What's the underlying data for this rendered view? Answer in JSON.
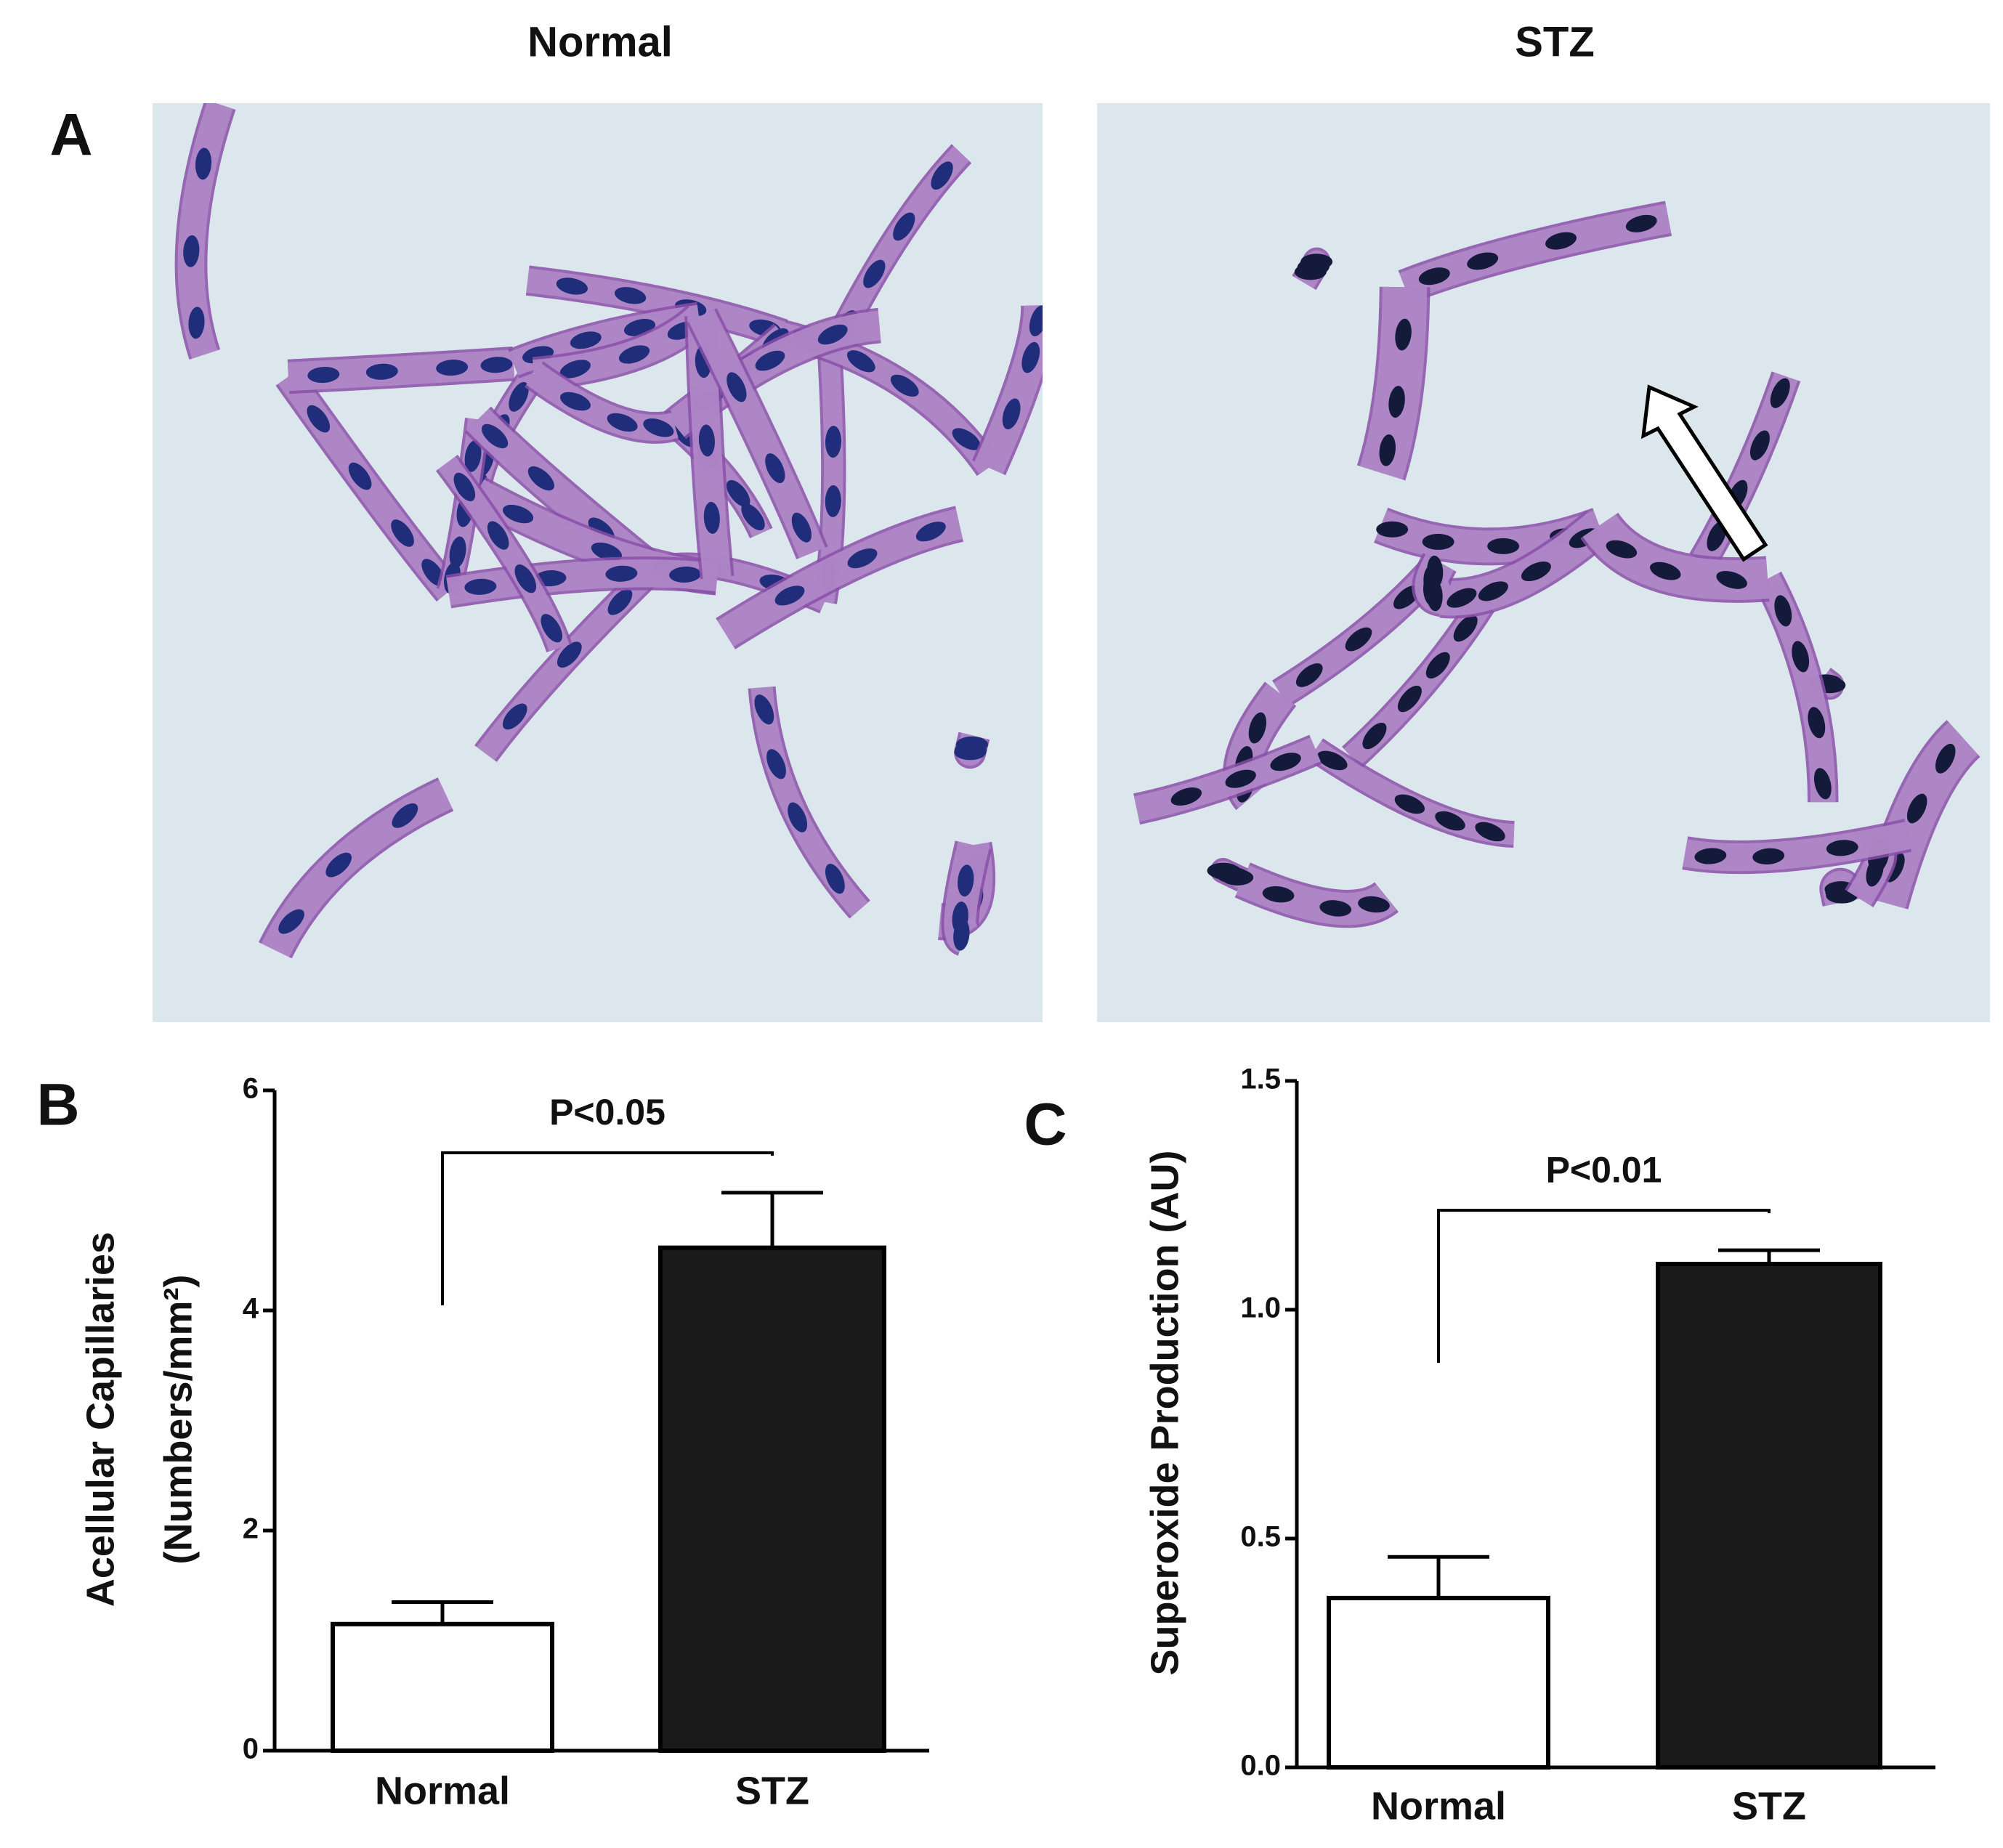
{
  "figure": {
    "panel_labels": [
      "A",
      "B",
      "C"
    ],
    "image_titles": [
      "Normal",
      "STZ"
    ]
  },
  "chart_data": [
    {
      "type": "bar",
      "categories": [
        "Normal",
        "STZ"
      ],
      "values": [
        1.15,
        4.57
      ],
      "errors": [
        0.2,
        0.5
      ],
      "colors": [
        "#ffffff",
        "#1a1a1a"
      ],
      "ylabel": [
        "Acellular Capillaries",
        "(Numbers/mm²)"
      ],
      "ylim": [
        0,
        6
      ],
      "yticks": [
        0,
        2,
        4,
        6
      ],
      "annotation": "P<0.05"
    },
    {
      "type": "bar",
      "categories": [
        "Normal",
        "STZ"
      ],
      "values": [
        0.37,
        1.1
      ],
      "errors": [
        0.09,
        0.03
      ],
      "colors": [
        "#ffffff",
        "#1a1a1a"
      ],
      "ylabel": [
        "Superoxide Production (AU)"
      ],
      "ylim": [
        0,
        1.5
      ],
      "yticks": [
        {
          "value": 0,
          "label": "0.0"
        },
        {
          "value": 0.5,
          "label": "0.5"
        },
        {
          "value": 1,
          "label": "1.0"
        },
        {
          "value": 1.5,
          "label": "1.5"
        }
      ],
      "annotation": "P<0.01"
    }
  ]
}
